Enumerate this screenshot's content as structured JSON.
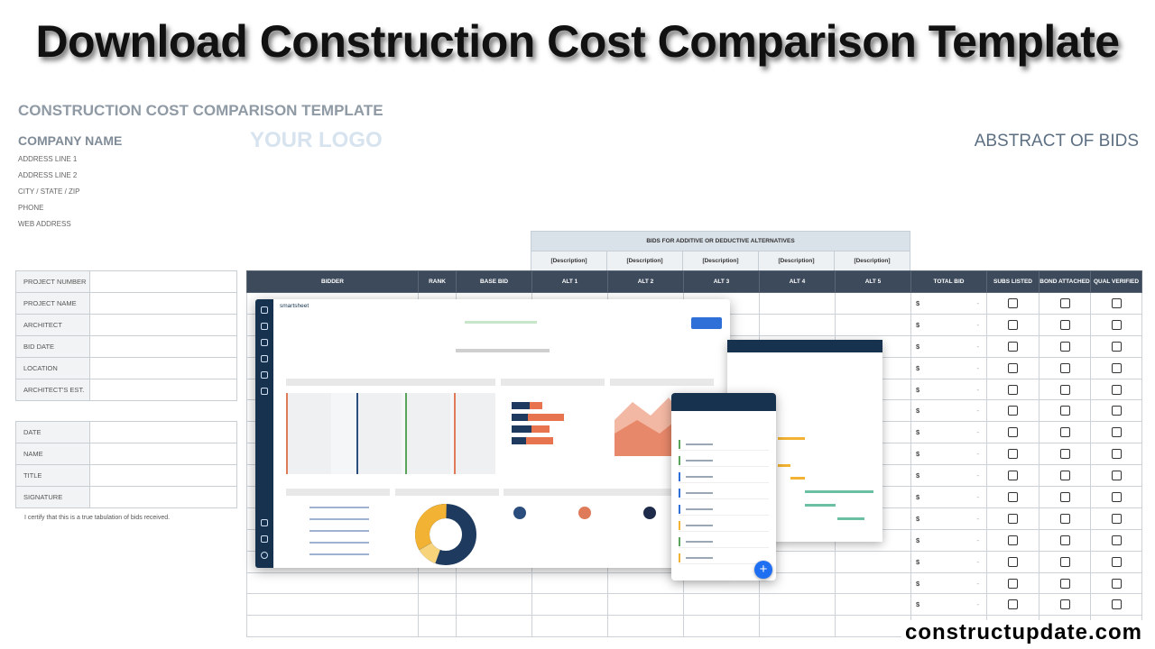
{
  "banner_title": "Download Construction Cost Comparison Template",
  "template": {
    "title": "CONSTRUCTION COST COMPARISON TEMPLATE",
    "company_name": "COMPANY NAME",
    "logo_placeholder": "YOUR LOGO",
    "abstract_label": "ABSTRACT OF BIDS",
    "address_lines": [
      "ADDRESS LINE 1",
      "ADDRESS LINE 2",
      "CITY / STATE / ZIP",
      "PHONE",
      "WEB ADDRESS"
    ]
  },
  "project_fields": [
    "PROJECT NUMBER",
    "PROJECT NAME",
    "ARCHITECT",
    "BID DATE",
    "LOCATION",
    "ARCHITECT'S EST."
  ],
  "signoff_fields": [
    "DATE",
    "NAME",
    "TITLE",
    "SIGNATURE"
  ],
  "certification_text": "I certify that this is a true tabulation of bids received.",
  "alternatives": {
    "heading": "BIDS FOR ADDITIVE OR DEDUCTIVE ALTERNATIVES",
    "descriptions": [
      "[Description]",
      "[Description]",
      "[Description]",
      "[Description]",
      "[Description]"
    ]
  },
  "bid_table": {
    "columns": [
      "BIDDER",
      "RANK",
      "BASE BID",
      "ALT 1",
      "ALT 2",
      "ALT 3",
      "ALT 4",
      "ALT 5",
      "TOTAL BID",
      "SUBS LISTED",
      "BOND ATTACHED",
      "QUAL VERIFIED"
    ],
    "currency_symbol": "$",
    "currency_dash": "-"
  },
  "overlay": {
    "brand": "smartsheet",
    "fab_symbol": "+"
  },
  "watermark": "constructupdate.com"
}
